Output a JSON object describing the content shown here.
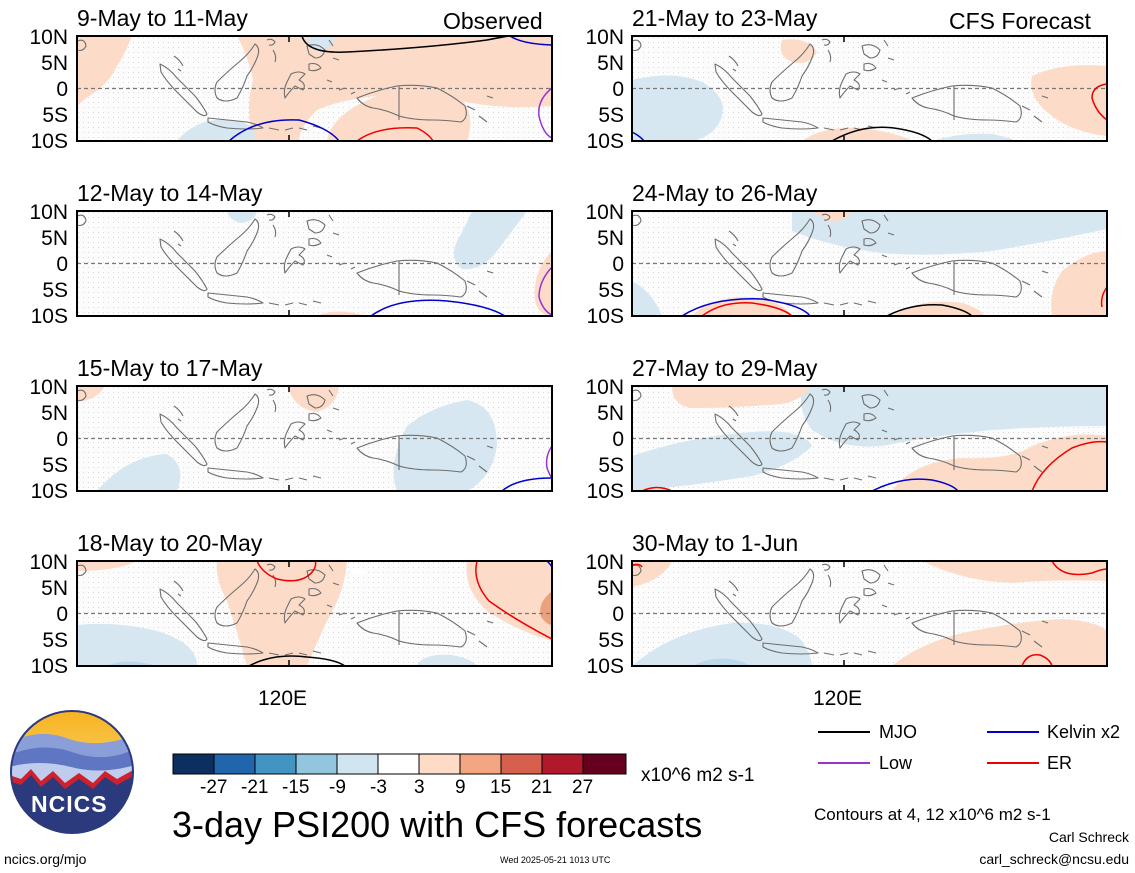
{
  "chart_data": {
    "type": "heatmap",
    "title": "3-day PSI200 with CFS forecasts",
    "variable": "PSI200 anomaly",
    "units": "x10^6 m2 s-1",
    "region": "Maritime Continent",
    "lat_ticks": [
      "10N",
      "5N",
      "0",
      "5S",
      "10S"
    ],
    "lat_range": [
      -10,
      10
    ],
    "lon_tick": "120E",
    "column_labels": {
      "left": "Observed",
      "right": "CFS Forecast"
    },
    "colorbar": {
      "ticks": [
        "-27",
        "-21",
        "-15",
        "-9",
        "-3",
        "3",
        "9",
        "15",
        "21",
        "27"
      ],
      "colors": [
        "#0b2f5e",
        "#2166ac",
        "#4393c3",
        "#92c5de",
        "#d1e5f0",
        "#ffffff",
        "#fddbc7",
        "#f4a582",
        "#d6604d",
        "#b2182b",
        "#67001f"
      ]
    },
    "contours_note": "Contours at 4, 12 x10^6 m2 s-1",
    "contour_legend": [
      {
        "name": "MJO",
        "color": "#000000"
      },
      {
        "name": "Kelvin x2",
        "color": "#0000cc"
      },
      {
        "name": "Low",
        "color": "#9933cc"
      },
      {
        "name": "ER",
        "color": "#ee0000"
      }
    ],
    "panels": [
      {
        "period": "9-May to 11-May",
        "column": "Observed"
      },
      {
        "period": "12-May to 14-May",
        "column": "Observed"
      },
      {
        "period": "15-May to 17-May",
        "column": "Observed"
      },
      {
        "period": "18-May to 20-May",
        "column": "Observed"
      },
      {
        "period": "21-May to 23-May",
        "column": "CFS Forecast"
      },
      {
        "period": "24-May to 26-May",
        "column": "CFS Forecast"
      },
      {
        "period": "27-May to 29-May",
        "column": "CFS Forecast"
      },
      {
        "period": "30-May to 1-Jun",
        "column": "CFS Forecast"
      }
    ]
  },
  "footer": {
    "logo_text": "NCICS",
    "url": "ncics.org/mjo",
    "timestamp": "Wed 2025-05-21 1013 UTC",
    "author": "Carl Schreck",
    "email": "carl_schreck@ncsu.edu"
  }
}
